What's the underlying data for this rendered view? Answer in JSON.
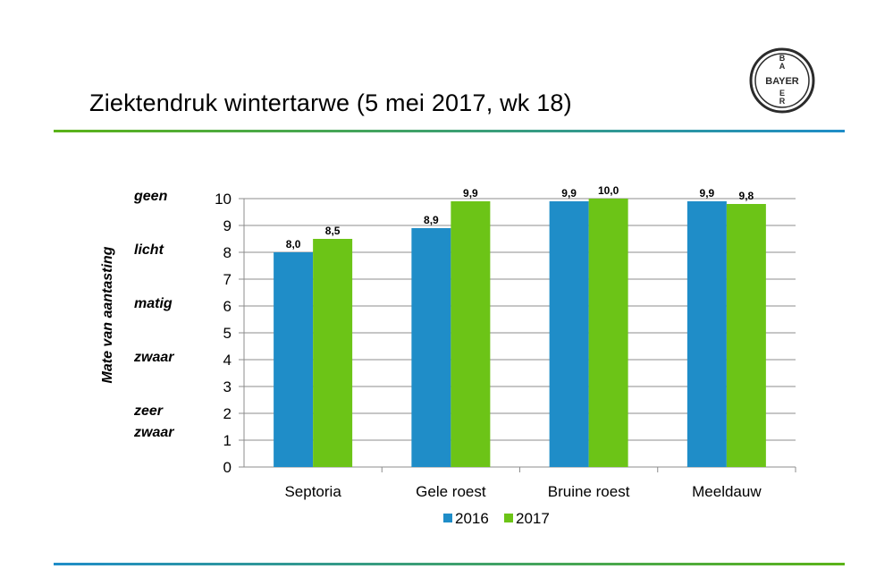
{
  "title": "Ziektendruk wintertarwe (5 mei 2017, wk 18)",
  "logo_text": "BAYER",
  "colors": {
    "accent_green": "#5bb318",
    "accent_blue": "#1f8dc8"
  },
  "severity_labels": [
    {
      "lines": [
        "geen"
      ],
      "value": 10
    },
    {
      "lines": [
        "licht"
      ],
      "value": 8
    },
    {
      "lines": [
        "matig"
      ],
      "value": 6
    },
    {
      "lines": [
        "zwaar"
      ],
      "value": 4
    },
    {
      "lines": [
        "zeer",
        "zwaar"
      ],
      "value": 2
    }
  ],
  "chart_data": {
    "type": "bar",
    "ylabel": "Mate van aantasting",
    "xlabel": "",
    "ylim": [
      0,
      10
    ],
    "yticks": [
      0,
      1,
      2,
      3,
      4,
      5,
      6,
      7,
      8,
      9,
      10
    ],
    "grid": true,
    "legend_position": "bottom",
    "categories": [
      "Septoria",
      "Gele roest",
      "Bruine roest",
      "Meeldauw"
    ],
    "series": [
      {
        "name": "2016",
        "color": "#1f8dc8",
        "values": [
          8.0,
          8.9,
          9.9,
          9.9
        ],
        "labels": [
          "8,0",
          "8,9",
          "9,9",
          "9,9"
        ]
      },
      {
        "name": "2017",
        "color": "#6cc417",
        "values": [
          8.5,
          9.9,
          10.0,
          9.8
        ],
        "labels": [
          "8,5",
          "9,9",
          "10,0",
          "9,8"
        ]
      }
    ]
  }
}
